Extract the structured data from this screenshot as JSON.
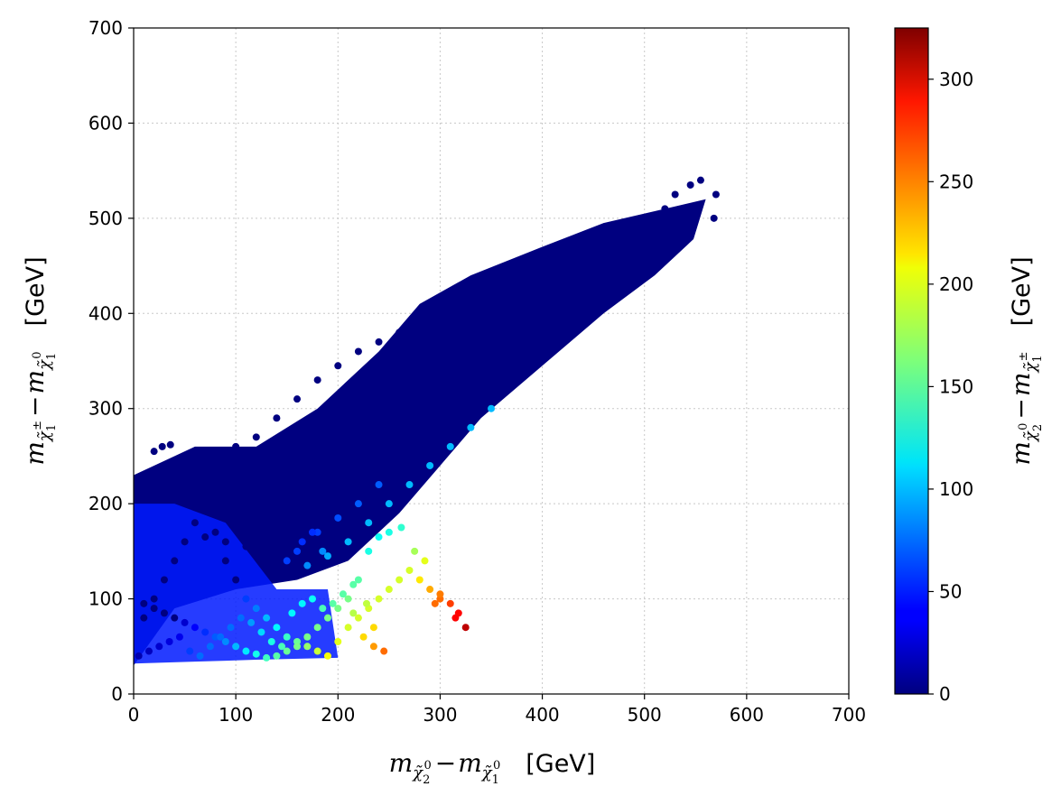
{
  "chart_data": {
    "type": "scatter",
    "title": "",
    "xlabel": {
      "m": "m",
      "sub1": "χ̃",
      "sub1_sub": "2",
      "sub1_sup": "0",
      "minus": "−",
      "m2": "m",
      "sub2": "χ̃",
      "sub2_sub": "1",
      "sub2_sup": "0",
      "unit": "[GeV]"
    },
    "ylabel": {
      "m": "m",
      "sub1": "χ̃",
      "sub1_sub": "1",
      "sub1_sup": "±",
      "minus": "−",
      "m2": "m",
      "sub2": "χ̃",
      "sub2_sub": "1",
      "sub2_sup": "0",
      "unit": "[GeV]"
    },
    "colorbar_label": {
      "m": "m",
      "sub1": "χ̃",
      "sub1_sub": "2",
      "sub1_sup": "0",
      "minus": "−",
      "m2": "m",
      "sub2": "χ̃",
      "sub2_sub": "1",
      "sub2_sup": "±",
      "unit": "[GeV]"
    },
    "xlim": [
      0,
      700
    ],
    "ylim": [
      0,
      700
    ],
    "xticks": [
      "0",
      "100",
      "200",
      "300",
      "400",
      "500",
      "600",
      "700"
    ],
    "yticks": [
      "0",
      "100",
      "200",
      "300",
      "400",
      "500",
      "600",
      "700"
    ],
    "colorbar_range": [
      0,
      325
    ],
    "colorbar_ticks": [
      "0",
      "50",
      "100",
      "150",
      "200",
      "250",
      "300"
    ],
    "colormap": "jet",
    "grid": true,
    "grid_style": "dotted",
    "points": [
      [
        555,
        540
      ],
      [
        570,
        525
      ],
      [
        568,
        500
      ],
      [
        545,
        535
      ],
      [
        530,
        525
      ],
      [
        520,
        510
      ],
      [
        510,
        500
      ],
      [
        500,
        495
      ],
      [
        490,
        485
      ],
      [
        480,
        475
      ],
      [
        470,
        470
      ],
      [
        460,
        460
      ],
      [
        450,
        455
      ],
      [
        440,
        445
      ],
      [
        430,
        440
      ],
      [
        420,
        430
      ],
      [
        410,
        425
      ],
      [
        400,
        415
      ],
      [
        390,
        405
      ],
      [
        380,
        400
      ],
      [
        370,
        390
      ],
      [
        360,
        380
      ],
      [
        350,
        375
      ],
      [
        340,
        365
      ],
      [
        330,
        355
      ],
      [
        320,
        350
      ],
      [
        310,
        340
      ],
      [
        300,
        330
      ],
      [
        290,
        320
      ],
      [
        280,
        315
      ],
      [
        270,
        305
      ],
      [
        260,
        295
      ],
      [
        250,
        285
      ],
      [
        240,
        275
      ],
      [
        230,
        265
      ],
      [
        220,
        255
      ],
      [
        210,
        245
      ],
      [
        200,
        235
      ],
      [
        190,
        225
      ],
      [
        180,
        215
      ],
      [
        170,
        205
      ],
      [
        160,
        195
      ],
      [
        150,
        185
      ],
      [
        140,
        175
      ],
      [
        520,
        470
      ],
      [
        500,
        460
      ],
      [
        480,
        440
      ],
      [
        460,
        420
      ],
      [
        440,
        400
      ],
      [
        420,
        380
      ],
      [
        400,
        360
      ],
      [
        380,
        345
      ],
      [
        360,
        330
      ],
      [
        340,
        310
      ],
      [
        320,
        290
      ],
      [
        300,
        275
      ],
      [
        280,
        255
      ],
      [
        260,
        240
      ],
      [
        240,
        220
      ],
      [
        220,
        200
      ],
      [
        200,
        185
      ],
      [
        180,
        170
      ],
      [
        160,
        150
      ],
      [
        400,
        455
      ],
      [
        380,
        440
      ],
      [
        360,
        430
      ],
      [
        340,
        420
      ],
      [
        320,
        410
      ],
      [
        300,
        400
      ],
      [
        280,
        390
      ],
      [
        260,
        380
      ],
      [
        240,
        370
      ],
      [
        220,
        360
      ],
      [
        200,
        345
      ],
      [
        180,
        330
      ],
      [
        160,
        310
      ],
      [
        140,
        290
      ],
      [
        120,
        270
      ],
      [
        100,
        260
      ],
      [
        80,
        255
      ],
      [
        60,
        250
      ],
      [
        40,
        240
      ],
      [
        20,
        230
      ],
      [
        350,
        300
      ],
      [
        330,
        280
      ],
      [
        310,
        260
      ],
      [
        290,
        240
      ],
      [
        270,
        220
      ],
      [
        250,
        200
      ],
      [
        230,
        180
      ],
      [
        210,
        160
      ],
      [
        190,
        145
      ],
      [
        170,
        135
      ],
      [
        150,
        140
      ],
      [
        130,
        150
      ],
      [
        110,
        155
      ],
      [
        90,
        160
      ],
      [
        70,
        165
      ],
      [
        28,
        260
      ],
      [
        36,
        262
      ],
      [
        20,
        255
      ],
      [
        48,
        240
      ],
      [
        75,
        255
      ],
      [
        85,
        245
      ],
      [
        118,
        232
      ],
      [
        130,
        230
      ],
      [
        138,
        220
      ],
      [
        148,
        225
      ],
      [
        160,
        195
      ],
      [
        175,
        170
      ],
      [
        185,
        150
      ],
      [
        165,
        160
      ],
      [
        150,
        175
      ],
      [
        10,
        80
      ],
      [
        20,
        100
      ],
      [
        30,
        120
      ],
      [
        40,
        140
      ],
      [
        50,
        160
      ],
      [
        60,
        180
      ],
      [
        70,
        200
      ],
      [
        80,
        170
      ],
      [
        90,
        140
      ],
      [
        100,
        120
      ],
      [
        110,
        100
      ],
      [
        120,
        90
      ],
      [
        130,
        80
      ],
      [
        140,
        70
      ],
      [
        150,
        60
      ],
      [
        160,
        55
      ],
      [
        170,
        50
      ],
      [
        180,
        45
      ],
      [
        190,
        40
      ],
      [
        200,
        55
      ],
      [
        210,
        70
      ],
      [
        220,
        80
      ],
      [
        230,
        90
      ],
      [
        240,
        100
      ],
      [
        250,
        110
      ],
      [
        260,
        120
      ],
      [
        270,
        130
      ],
      [
        280,
        120
      ],
      [
        290,
        110
      ],
      [
        300,
        100
      ],
      [
        310,
        95
      ],
      [
        315,
        80
      ],
      [
        318,
        85
      ],
      [
        325,
        70
      ],
      [
        300,
        105
      ],
      [
        295,
        95
      ],
      [
        285,
        140
      ],
      [
        275,
        150
      ],
      [
        262,
        175
      ],
      [
        250,
        170
      ],
      [
        240,
        165
      ],
      [
        230,
        150
      ],
      [
        220,
        120
      ],
      [
        210,
        100
      ],
      [
        200,
        90
      ],
      [
        190,
        80
      ],
      [
        180,
        70
      ],
      [
        170,
        60
      ],
      [
        160,
        50
      ],
      [
        150,
        45
      ],
      [
        140,
        40
      ],
      [
        130,
        38
      ],
      [
        120,
        42
      ],
      [
        110,
        45
      ],
      [
        100,
        50
      ],
      [
        90,
        55
      ],
      [
        80,
        60
      ],
      [
        70,
        65
      ],
      [
        60,
        70
      ],
      [
        50,
        75
      ],
      [
        40,
        80
      ],
      [
        30,
        85
      ],
      [
        20,
        90
      ],
      [
        10,
        95
      ],
      [
        5,
        40
      ],
      [
        15,
        45
      ],
      [
        25,
        50
      ],
      [
        35,
        55
      ],
      [
        45,
        60
      ],
      [
        55,
        45
      ],
      [
        65,
        40
      ],
      [
        75,
        50
      ],
      [
        85,
        60
      ],
      [
        95,
        70
      ],
      [
        105,
        80
      ],
      [
        115,
        75
      ],
      [
        125,
        65
      ],
      [
        135,
        55
      ],
      [
        145,
        50
      ],
      [
        155,
        85
      ],
      [
        165,
        95
      ],
      [
        175,
        100
      ],
      [
        185,
        90
      ],
      [
        195,
        95
      ],
      [
        205,
        105
      ],
      [
        215,
        115
      ],
      [
        225,
        60
      ],
      [
        235,
        50
      ],
      [
        245,
        45
      ],
      [
        235,
        70
      ],
      [
        228,
        95
      ],
      [
        215,
        85
      ]
    ]
  }
}
